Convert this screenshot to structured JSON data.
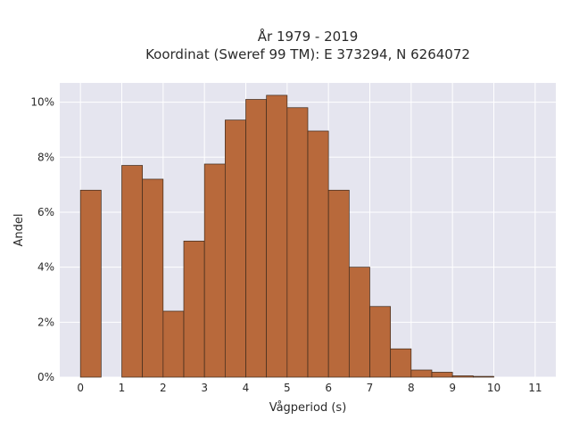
{
  "chart_data": {
    "type": "bar",
    "title_line1": "År 1979 - 2019",
    "title_line2": "Koordinat (Sweref 99 TM): E 373294, N 6264072",
    "xlabel": "Vågperiod (s)",
    "ylabel": "Andel",
    "x_ticks": [
      "0",
      "1",
      "2",
      "3",
      "4",
      "5",
      "6",
      "7",
      "8",
      "9",
      "10",
      "11"
    ],
    "y_ticks": [
      "0%",
      "2%",
      "4%",
      "6%",
      "8%",
      "10%"
    ],
    "xlim": [
      -0.5,
      11.5
    ],
    "ylim": [
      0,
      10.7
    ],
    "bin_width": 0.5,
    "bins_left": [
      0,
      0.5,
      1,
      1.5,
      2,
      2.5,
      3,
      3.5,
      4,
      4.5,
      5,
      5.5,
      6,
      6.5,
      7,
      7.5,
      8,
      8.5,
      9,
      9.5,
      10,
      10.5
    ],
    "values": [
      6.8,
      0,
      7.7,
      7.2,
      2.4,
      4.95,
      7.75,
      9.35,
      10.1,
      10.25,
      9.8,
      8.95,
      6.8,
      4.0,
      2.57,
      1.03,
      0.26,
      0.18,
      0.05,
      0.03,
      0,
      0
    ],
    "grid": true,
    "bar_color": "#b8693b",
    "plot_bg": "#e5e5ef"
  }
}
